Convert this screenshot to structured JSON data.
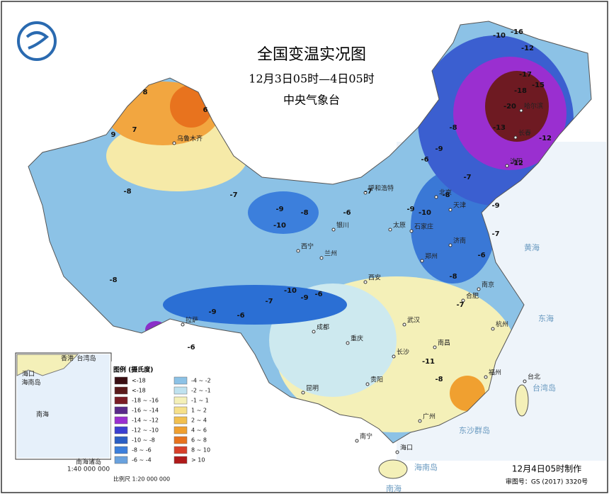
{
  "header": {
    "title": "全国变温实况图",
    "subtitle": "12月3日05时—4日05时",
    "issuer": "中央气象台"
  },
  "legend": {
    "title": "图例 (摄氏度)",
    "items": [
      {
        "label": "<-18",
        "color": "#3a0e12"
      },
      {
        "label": "<-18",
        "color": "#5a1a1a"
      },
      {
        "label": "-18 ~ -16",
        "color": "#7a1c24"
      },
      {
        "label": "-16 ~ -14",
        "color": "#5a2a8a"
      },
      {
        "label": "-14 ~ -12",
        "color": "#9a2fd0"
      },
      {
        "label": "-12 ~ -10",
        "color": "#3b3fd0"
      },
      {
        "label": "-10 ~ -8",
        "color": "#2b5fc4"
      },
      {
        "label": "-8 ~ -6",
        "color": "#3c7fdc"
      },
      {
        "label": "-6 ~ -4",
        "color": "#6aa2de"
      },
      {
        "label": "-4 ~ -2",
        "color": "#8cc2e6"
      },
      {
        "label": "-2 ~ -1",
        "color": "#bfe2ef"
      },
      {
        "label": "-1 ~ 1",
        "color": "#f4f0b8"
      },
      {
        "label": "1 ~ 2",
        "color": "#f6e08a"
      },
      {
        "label": "2 ~ 4",
        "color": "#f2c050"
      },
      {
        "label": "4 ~ 6",
        "color": "#f0a030"
      },
      {
        "label": "6 ~ 8",
        "color": "#e8731e"
      },
      {
        "label": "8 ~ 10",
        "color": "#d8402a"
      },
      {
        "label": "> 10",
        "color": "#b01a1a"
      }
    ]
  },
  "scale": "比例尺   1:20 000 000",
  "footer": {
    "made": "12月4日05时制作",
    "approval": "审图号：GS (2017) 3320号"
  },
  "inset": {
    "labels": [
      "香港",
      "台湾岛",
      "海口",
      "海南岛",
      "南海",
      "南海诸岛",
      "1:40 000 000"
    ]
  },
  "cities": [
    "乌鲁木齐",
    "呼和浩特",
    "北京",
    "天津",
    "石家庄",
    "太原",
    "济南",
    "郑州",
    "西安",
    "银川",
    "兰州",
    "西宁",
    "拉萨",
    "成都",
    "重庆",
    "武汉",
    "长沙",
    "南昌",
    "杭州",
    "合肥",
    "南京",
    "福州",
    "广州",
    "南宁",
    "贵阳",
    "台北",
    "海口",
    "昆明",
    "沈阳",
    "长春",
    "哈尔滨"
  ],
  "seas": [
    "黄海",
    "东海",
    "南海",
    "台湾岛",
    "东沙群岛",
    "海南岛"
  ],
  "readings": [
    -16,
    -12,
    -10,
    -17,
    -18,
    -20,
    -15,
    -13,
    -12,
    -8,
    -9,
    -6,
    -7,
    -8,
    -10,
    -9,
    -7,
    -6,
    -8,
    -9,
    -10,
    -12,
    -9,
    -7,
    -6,
    -8,
    -10,
    -7,
    -6,
    -9,
    -6,
    -8,
    -11,
    -8,
    8,
    6,
    9,
    7,
    -7,
    -9,
    -6,
    -8,
    -7
  ]
}
